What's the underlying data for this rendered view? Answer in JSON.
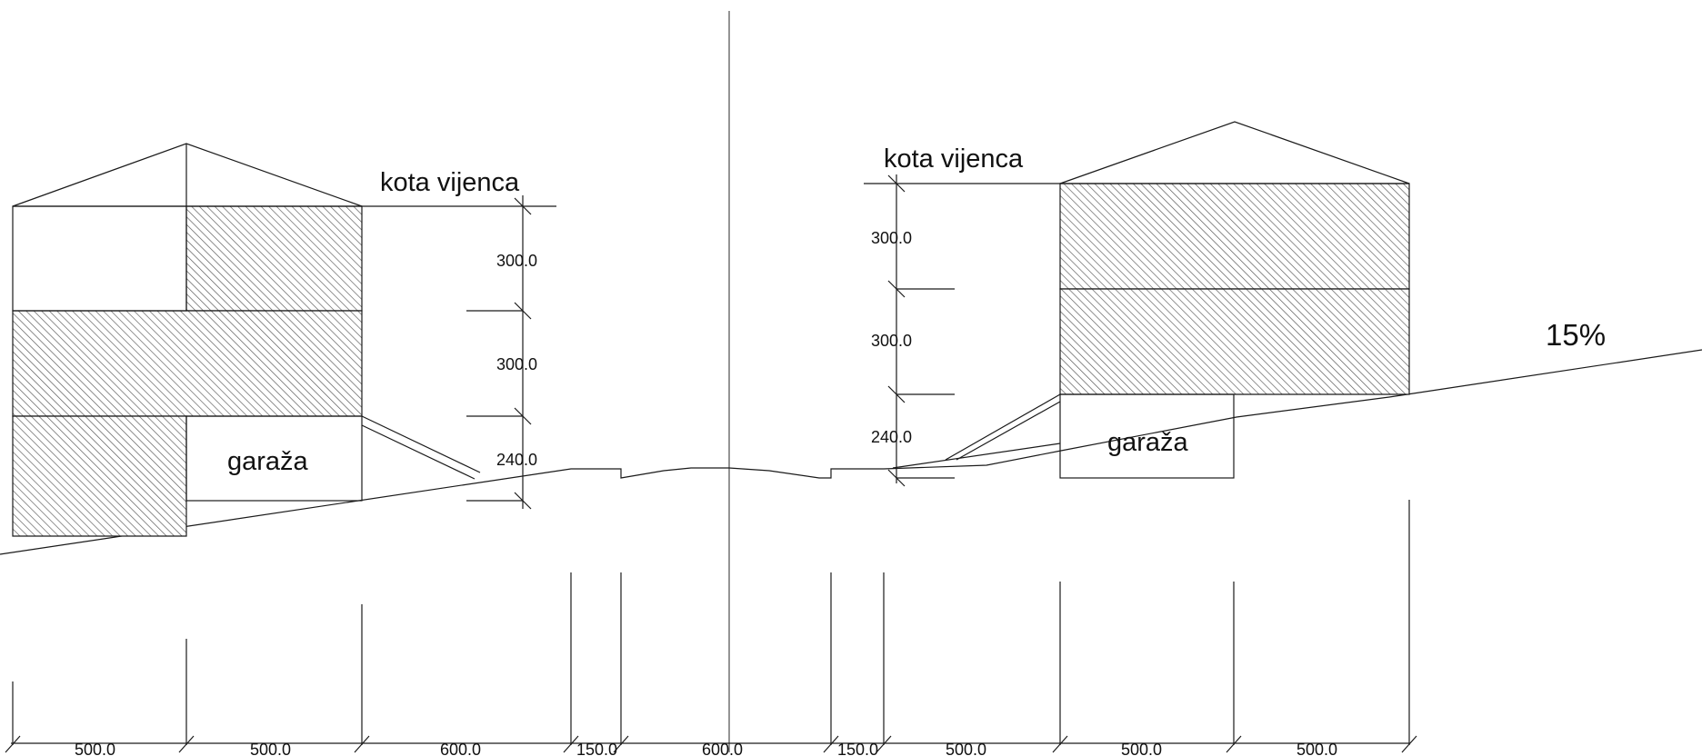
{
  "labels": {
    "eave_height_left": "kota vijenca",
    "eave_height_right": "kota vijenca",
    "garage_left": "garaža",
    "garage_right": "garaža",
    "slope": "15%"
  },
  "vertical_dimensions": {
    "left": [
      "300.0",
      "300.0",
      "240.0"
    ],
    "right": [
      "300.0",
      "300.0",
      "240.0"
    ]
  },
  "horizontal_dimensions": [
    "500.0",
    "500.0",
    "600.0",
    "150.0",
    "600.0",
    "150.0",
    "500.0",
    "500.0",
    "500.0"
  ],
  "colors": {
    "line": "#1a1a1a",
    "hatch": "#555555",
    "background": "#ffffff"
  }
}
